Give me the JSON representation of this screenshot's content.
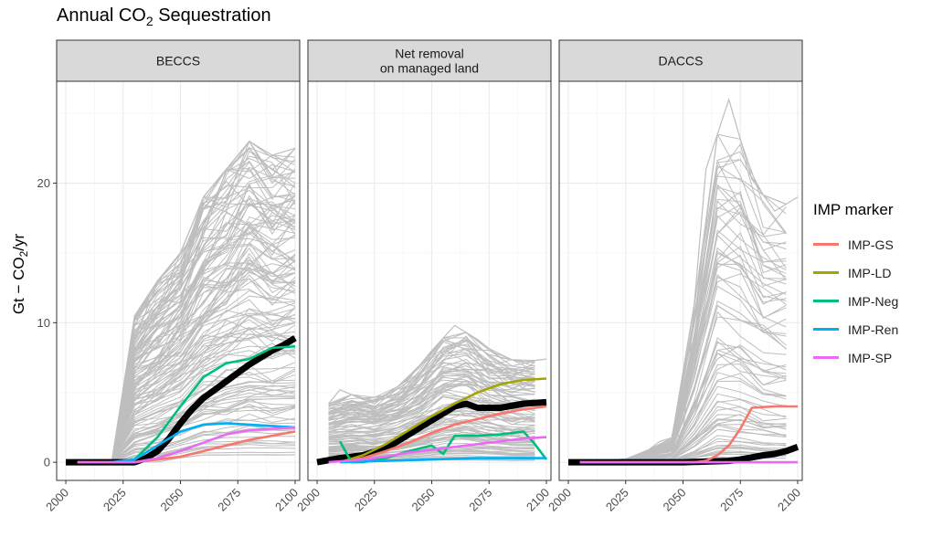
{
  "chart_data": {
    "type": "line",
    "title": "Annual CO₂ Sequestration",
    "ylabel": "Gt − CO₂/yr",
    "xlim": [
      1996,
      2102
    ],
    "ylim": [
      -1.3,
      27.3
    ],
    "x_ticks": [
      "2000",
      "2025",
      "2050",
      "2075",
      "2100"
    ],
    "y_ticks": [
      "0",
      "10",
      "20"
    ],
    "grid": true,
    "legend_title": "IMP marker",
    "legend_position": "right",
    "colors": {
      "IMP-GS": "#F8766D",
      "IMP-LD": "#A3A500",
      "IMP-Neg": "#00BF7D",
      "IMP-Ren": "#00B0F6",
      "IMP-SP": "#E76BF3",
      "median": "#000000",
      "scenarios": "#bebebe"
    },
    "panels": [
      {
        "strip": [
          "BECCS"
        ],
        "scenario_envelope": {
          "x": [
            2020,
            2030,
            2040,
            2050,
            2060,
            2070,
            2080,
            2090,
            2100
          ],
          "low": [
            0,
            0,
            0,
            0.3,
            0.5,
            0.5,
            0.5,
            0.5,
            0.5
          ],
          "high": [
            0,
            10.5,
            13,
            15,
            19,
            21,
            23,
            22,
            22.5
          ]
        },
        "median": {
          "x": [
            2000,
            2010,
            2020,
            2030,
            2035,
            2040,
            2045,
            2050,
            2055,
            2060,
            2065,
            2070,
            2075,
            2080,
            2085,
            2090,
            2095,
            2100
          ],
          "y": [
            0,
            0,
            0,
            0,
            0.3,
            0.8,
            1.7,
            2.8,
            3.8,
            4.6,
            5.2,
            5.8,
            6.4,
            7.0,
            7.5,
            8.0,
            8.4,
            8.9
          ]
        },
        "series": [
          {
            "name": "IMP-GS",
            "x": [
              2005,
              2030,
              2040,
              2050,
              2060,
              2070,
              2080,
              2090,
              2100
            ],
            "y": [
              0,
              0,
              0.2,
              0.4,
              0.8,
              1.2,
              1.6,
              1.9,
              2.2
            ]
          },
          {
            "name": "IMP-Neg",
            "x": [
              2020,
              2030,
              2040,
              2050,
              2060,
              2070,
              2080,
              2090,
              2100
            ],
            "y": [
              0,
              0.2,
              1.8,
              4.0,
              6.1,
              7.1,
              7.4,
              8.2,
              8.3
            ]
          },
          {
            "name": "IMP-Ren",
            "x": [
              2020,
              2030,
              2040,
              2050,
              2060,
              2070,
              2080,
              2090,
              2100
            ],
            "y": [
              0,
              0.2,
              1.2,
              2.2,
              2.7,
              2.8,
              2.7,
              2.6,
              2.5
            ]
          },
          {
            "name": "IMP-SP",
            "x": [
              2005,
              2030,
              2040,
              2050,
              2060,
              2070,
              2080,
              2090,
              2100
            ],
            "y": [
              0,
              0,
              0.3,
              0.8,
              1.4,
              2.0,
              2.3,
              2.4,
              2.5
            ]
          }
        ]
      },
      {
        "strip": [
          "Net removal",
          "on managed land"
        ],
        "scenario_envelope": {
          "x": [
            2005,
            2010,
            2020,
            2030,
            2040,
            2050,
            2060,
            2070,
            2080,
            2090,
            2100
          ],
          "low": [
            0,
            0,
            0,
            0,
            0,
            0,
            0,
            0,
            0,
            0,
            0
          ],
          "high": [
            4.2,
            5.2,
            4.5,
            4.8,
            6.0,
            8.0,
            9.8,
            8.8,
            7.5,
            7.2,
            7.4
          ]
        },
        "median": {
          "x": [
            2000,
            2010,
            2020,
            2030,
            2040,
            2050,
            2060,
            2065,
            2070,
            2080,
            2090,
            2100
          ],
          "y": [
            0,
            0.3,
            0.5,
            1.0,
            2.0,
            3.0,
            4.0,
            4.2,
            3.9,
            3.9,
            4.2,
            4.3
          ]
        },
        "series": [
          {
            "name": "IMP-GS",
            "x": [
              2010,
              2020,
              2030,
              2040,
              2050,
              2060,
              2070,
              2080,
              2090,
              2100
            ],
            "y": [
              0,
              0.3,
              0.8,
              1.4,
              2.1,
              2.7,
              3.1,
              3.5,
              3.8,
              4.0
            ]
          },
          {
            "name": "IMP-LD",
            "x": [
              2010,
              2020,
              2030,
              2040,
              2050,
              2060,
              2070,
              2080,
              2090,
              2100
            ],
            "y": [
              0,
              0.5,
              1.3,
              2.3,
              3.3,
              4.2,
              5.0,
              5.6,
              5.9,
              6.0
            ]
          },
          {
            "name": "IMP-Neg",
            "x": [
              2010,
              2015,
              2020,
              2030,
              2040,
              2050,
              2055,
              2060,
              2070,
              2080,
              2090,
              2095,
              2100
            ],
            "y": [
              1.5,
              0,
              0,
              0.3,
              0.8,
              1.2,
              0.6,
              1.9,
              1.9,
              2.0,
              2.2,
              1.3,
              0.2
            ]
          },
          {
            "name": "IMP-Ren",
            "x": [
              2010,
              2030,
              2050,
              2070,
              2090,
              2100
            ],
            "y": [
              0,
              0.1,
              0.2,
              0.3,
              0.3,
              0.3
            ]
          },
          {
            "name": "IMP-SP",
            "x": [
              2005,
              2020,
              2030,
              2040,
              2050,
              2060,
              2070,
              2080,
              2090,
              2100
            ],
            "y": [
              0,
              0.2,
              0.4,
              0.7,
              0.9,
              1.1,
              1.3,
              1.5,
              1.7,
              1.8
            ]
          }
        ]
      },
      {
        "strip": [
          "DACCS"
        ],
        "scenario_envelope": {
          "x": [
            2005,
            2030,
            2040,
            2050,
            2060,
            2070,
            2080,
            2090,
            2100
          ],
          "low": [
            0,
            0,
            0,
            0,
            0,
            0,
            0,
            0,
            0
          ],
          "high": [
            0,
            0.3,
            1.5,
            2.0,
            21.0,
            26.0,
            20.3,
            18.0,
            19.0
          ]
        },
        "median": {
          "x": [
            2000,
            2050,
            2060,
            2070,
            2075,
            2080,
            2085,
            2090,
            2095,
            2100
          ],
          "y": [
            0,
            0,
            0.05,
            0.1,
            0.2,
            0.35,
            0.5,
            0.6,
            0.8,
            1.1
          ]
        },
        "series": [
          {
            "name": "IMP-GS",
            "x": [
              2005,
              2055,
              2060,
              2065,
              2070,
              2075,
              2080,
              2090,
              2100
            ],
            "y": [
              0,
              0,
              0.1,
              0.5,
              1.2,
              2.4,
              3.9,
              4.0,
              4.0
            ]
          },
          {
            "name": "IMP-SP",
            "x": [
              2005,
              2100
            ],
            "y": [
              0,
              0
            ]
          }
        ]
      }
    ]
  }
}
